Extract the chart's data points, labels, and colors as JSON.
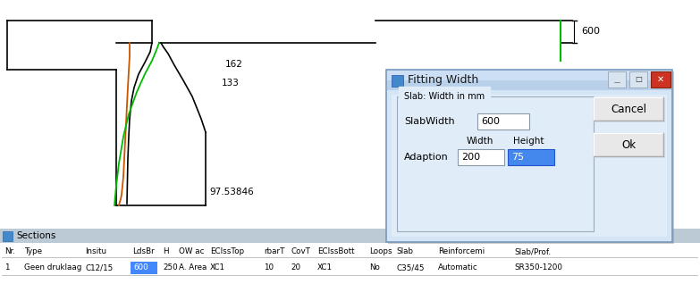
{
  "bg_color": "#f0f0f0",
  "drawing_bg": "#ffffff",
  "shape_outline_color": "#000000",
  "shape_orange_color": "#cc5500",
  "shape_green_color": "#00bb00",
  "label_162": "162",
  "label_133": "133",
  "label_97": "97.53846",
  "label_600": "600",
  "dialog_title": "Fitting Width",
  "dialog_bg": "#ccdff5",
  "dialog_inner_bg": "#dce8f4",
  "dialog_border": "#7799bb",
  "slab_group_title": "Slab: Width in mm",
  "slabwidth_label": "SlabWidth",
  "slabwidth_value": "600",
  "adaption_label": "Adaption",
  "width_label": "Width",
  "height_label": "Height",
  "adaption_width_value": "200",
  "adaption_height_value": "75",
  "cancel_btn": "Cancel",
  "ok_btn": "Ok",
  "table_header": [
    "Nr.",
    "Type",
    "Insitu",
    "LdsBr",
    "H",
    "OW ac",
    "ECIssTop",
    "rbarT",
    "CovT",
    "ECIssBott",
    "Loops",
    "Slab",
    "Reinforcemi",
    "Slab/Prof."
  ],
  "table_row": [
    "1",
    "Geen druklaag",
    "C12/15",
    "600",
    "250",
    "A. Area",
    "XC1",
    "10",
    "20",
    "XC1",
    "No",
    "C35/45",
    "Automatic",
    "SR350-1200"
  ],
  "table_highlight_col": 3,
  "table_highlight_color": "#4488ff",
  "sections_label": "Sections",
  "bottom_panel_color": "#c8d4dc",
  "table_bg": "#ffffff"
}
